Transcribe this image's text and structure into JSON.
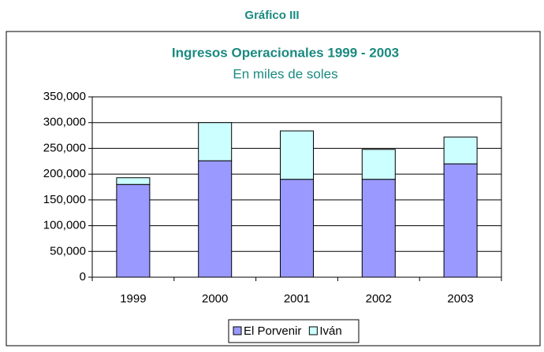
{
  "heading": "Gráfico III",
  "chart_data": {
    "type": "stacked-bar",
    "title": "Ingresos Operacionales 1999 - 2003",
    "subtitle": "En miles de soles",
    "categories": [
      "1999",
      "2000",
      "2001",
      "2002",
      "2003"
    ],
    "series": [
      {
        "name": "El Porvenir",
        "color": "#9999ff",
        "values": [
          180000,
          226000,
          190000,
          190000,
          220000
        ]
      },
      {
        "name": "Iván",
        "color": "#ccffff",
        "values": [
          13000,
          74000,
          94000,
          58000,
          52000
        ]
      }
    ],
    "ylim": [
      0,
      350000
    ],
    "yticks": [
      0,
      {
        "value": 50000,
        "label": "50,000"
      },
      {
        "value": 100000,
        "label": "100,000"
      },
      {
        "value": 150000,
        "label": "150,000"
      },
      {
        "value": 200000,
        "label": "200,000"
      },
      {
        "value": 250000,
        "label": "250,000"
      },
      {
        "value": 300000,
        "label": "300,000"
      },
      {
        "value": 350000,
        "label": "350,000"
      }
    ],
    "grid": true,
    "legend": "bottom"
  }
}
